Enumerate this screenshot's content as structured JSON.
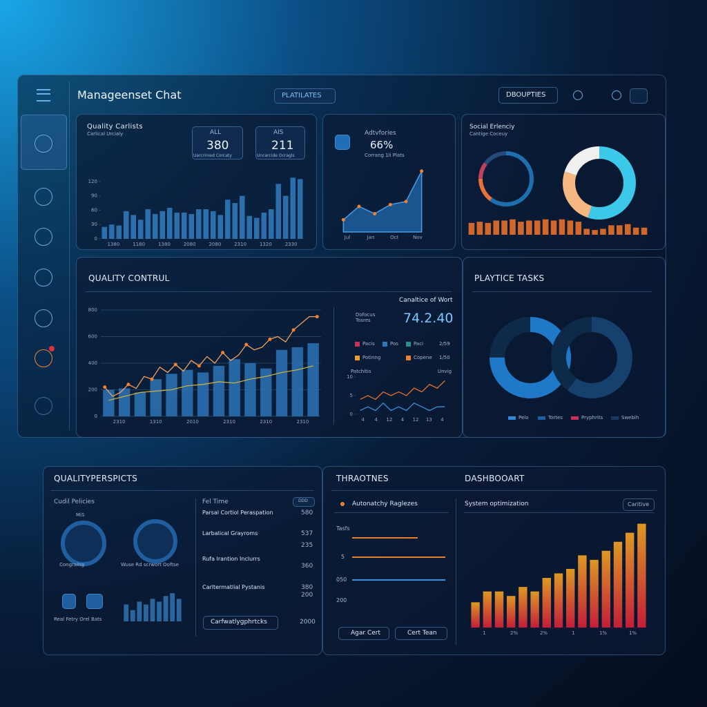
{
  "header": {
    "title": "Manageenset Chat",
    "tab": "PLATILATES",
    "button": "DBOUPTIES"
  },
  "panels": {
    "p1": {
      "title": "Quality Carlists",
      "subtitle": "Carlical Urcialy",
      "stats": [
        {
          "label": "ALL",
          "value": "380",
          "note": "Uarcrinied Corcaty"
        },
        {
          "label": "AIS",
          "value": "211",
          "note": "Uncarcide Ocragls"
        }
      ],
      "chart": {
        "type": "bar",
        "ylim": [
          0,
          140
        ],
        "yticks": [
          0,
          30,
          60,
          90,
          120
        ],
        "xlabels": [
          "1380",
          "1180",
          "1380",
          "2080",
          "2080",
          "2310",
          "1320",
          "2330"
        ],
        "series": [
          {
            "type": "bar",
            "color": "#2f78b8",
            "values": [
              25,
              30,
              28,
              58,
              50,
              40,
              62,
              52,
              58,
              65,
              55,
              55,
              52,
              62,
              62,
              58,
              50,
              82,
              75,
              90,
              48,
              44,
              55,
              62,
              115,
              90,
              128,
              125
            ]
          }
        ]
      }
    },
    "p2": {
      "title": "Adtvfories",
      "value": "66%",
      "subtitle": "Corrang 1li Plats",
      "chart": {
        "type": "line",
        "ylim": [
          0,
          110
        ],
        "xlabels": [
          "Jul",
          "Jan",
          "Oct",
          "Nov"
        ],
        "series": [
          {
            "type": "area",
            "color": "#1f5fa0",
            "line": "#4a9be0",
            "marker": "#f08030",
            "values": [
              20,
              42,
              30,
              45,
              50,
              100
            ]
          }
        ]
      }
    },
    "p3": {
      "title": "Social Erlenciy",
      "subtitle": "Cantige Coceuy",
      "donuts": [
        {
          "type": "donut",
          "values": [
            60,
            15,
            10,
            15
          ],
          "colors": [
            "#1e6fb0",
            "#e8703a",
            "#c04060",
            "#234a78"
          ]
        },
        {
          "type": "donut",
          "values": [
            55,
            25,
            20
          ],
          "colors": [
            "#3cc8e8",
            "#f5b880",
            "#f0f0f0"
          ]
        }
      ],
      "chart": {
        "type": "bar",
        "ylim": [
          0,
          28
        ],
        "series": [
          {
            "type": "bar",
            "color": "#e8702a",
            "values": [
              20,
              22,
              20,
              24,
              24,
              26,
              22,
              24,
              24,
              26,
              24,
              26,
              24,
              22,
              10,
              8,
              10,
              16,
              16,
              18,
              12,
              12
            ]
          }
        ]
      }
    },
    "p4": {
      "title": "QUALITY CONTRUL",
      "chart": {
        "type": "bar",
        "ylim": [
          0,
          800
        ],
        "yticks": [
          0,
          200,
          400,
          600,
          800
        ],
        "grid": true,
        "xlabels": [
          "2310",
          "1310",
          "2010",
          "2310",
          "2310",
          "2310"
        ],
        "series": [
          {
            "type": "bar",
            "color": "#2a6fb0",
            "values": [
              200,
              210,
              180,
              280,
              320,
              350,
              330,
              380,
              430,
              400,
              360,
              500,
              520,
              550
            ]
          },
          {
            "type": "line",
            "color": "#f0a060",
            "marker": "#f08030",
            "values": [
              220,
              150,
              180,
              240,
              210,
              300,
              280,
              370,
              330,
              390,
              340,
              420,
              380,
              450,
              400,
              480,
              420,
              460,
              540,
              500,
              520,
              580,
              600,
              560,
              650,
              700,
              750,
              750
            ]
          },
          {
            "type": "line",
            "color": "#c8b040",
            "values": [
              120,
              150,
              180,
              190,
              200,
              230,
              240,
              260,
              250,
              280,
              300,
              330,
              350,
              380
            ]
          }
        ]
      },
      "kpi_title": "Canaltice of Wort",
      "kpi_label": "Dofocus Tosres",
      "kpi": "74.2.40",
      "legend": [
        {
          "name": "Pacis",
          "color": "#c8305a"
        },
        {
          "name": "Pos",
          "color": "#2f78b8"
        },
        {
          "name": "Paci",
          "color": "#2a9088"
        },
        {
          "name": "Potinng",
          "color": "#e8a030"
        },
        {
          "name": "Copene",
          "color": "#f08030"
        }
      ],
      "legend_values": [
        "2/59",
        "1/50"
      ],
      "sub_title": "Patchitis",
      "sub_note": "Unvig",
      "subchart": {
        "type": "line",
        "ylim": [
          0,
          10
        ],
        "yticks": [
          0,
          5,
          10
        ],
        "xlabels": [
          "4",
          "4",
          "12",
          "4",
          "12",
          "13",
          "4"
        ],
        "series": [
          {
            "type": "line",
            "color": "#e8702a",
            "values": [
              4,
              5,
              4,
              6,
              5,
              6,
              5,
              7,
              6,
              8,
              7,
              9
            ]
          },
          {
            "type": "line",
            "color": "#3a90d8",
            "values": [
              1,
              2,
              1,
              3,
              1,
              2,
              1,
              3,
              2,
              1,
              2,
              2
            ]
          }
        ]
      }
    },
    "p5": {
      "title": "PLAYTICE TASKS",
      "donuts": [
        {
          "type": "donut",
          "values": [
            75,
            25
          ],
          "colors": [
            "#1f78c8",
            "#0d2a48"
          ]
        },
        {
          "type": "donut",
          "values": [
            60,
            40
          ],
          "colors": [
            "#16406e",
            "#0d2a48"
          ]
        }
      ],
      "legend": [
        {
          "name": "Pelo",
          "color": "#2f8ad8"
        },
        {
          "name": "Tortes",
          "color": "#1f5fa0"
        },
        {
          "name": "Pryphrits",
          "color": "#c8305a"
        },
        {
          "name": "Swebih",
          "color": "#183a60"
        }
      ]
    },
    "p6": {
      "title": "QUALITYPERSPICTS",
      "subtitle": "Cudil Pelicies",
      "icon_top": "MiS",
      "icons": [
        "Congraing",
        "Wuse Rd scrwort Ooftse"
      ],
      "footer": "Real Fetry Orel Bats",
      "chart": {
        "type": "bar",
        "ylim": [
          0,
          60
        ],
        "series": [
          {
            "type": "bar",
            "color": "#2f6fa8",
            "values": [
              30,
              20,
              35,
              30,
              40,
              35,
              45,
              50,
              40
            ]
          }
        ]
      },
      "list_title": "Fel Time",
      "list_badge": "DDD",
      "items": [
        {
          "title": "Parsal Cortiol Peraspation",
          "values": [
            "580"
          ]
        },
        {
          "title": "Larbalical Grayroms",
          "values": [
            "537",
            "235"
          ]
        },
        {
          "title": "Rufa Irantion Inclurrs",
          "values": [
            "360"
          ]
        },
        {
          "title": "Carltermatlial Pystanis",
          "values": [
            "380",
            "200"
          ]
        }
      ],
      "button": "Carfwatlygphrtcks",
      "button_value": "2000"
    },
    "p7": {
      "title": "THRAOTNES",
      "subtitle": "Autonatchy Raglezes",
      "labels": [
        "Tasfs",
        "5",
        "050",
        "200"
      ],
      "buttons": [
        "Agar Cert",
        "Cert Tean"
      ]
    },
    "p8": {
      "title": "DASHBOOART",
      "subtitle": "System optimization",
      "badge": "Caritive",
      "chart": {
        "type": "bar",
        "ylim": [
          0,
          120
        ],
        "xlabels": [
          "1",
          "2%",
          "2%",
          "1",
          "1%",
          "1%"
        ],
        "series": [
          {
            "type": "bar",
            "gradient": [
              "#f5a623",
              "#d81e3a"
            ],
            "values": [
              28,
              40,
              40,
              35,
              45,
              40,
              55,
              60,
              65,
              80,
              75,
              85,
              95,
              105,
              115
            ]
          }
        ]
      }
    }
  }
}
